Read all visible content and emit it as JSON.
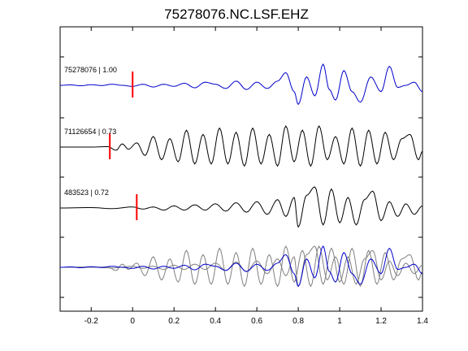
{
  "chart_data": {
    "type": "line",
    "title": "75278076.NC.LSF.EHZ",
    "xlabel": "",
    "ylabel": "",
    "xlim": [
      -0.35,
      1.4
    ],
    "x_ticks": [
      -0.2,
      0,
      0.2,
      0.4,
      0.6,
      0.8,
      1.0,
      1.2,
      1.4
    ],
    "x_tick_labels": [
      "-0.2",
      "0",
      "0.2",
      "0.4",
      "0.6",
      "0.8",
      "1",
      "1.2",
      "1.4"
    ],
    "grid": false,
    "colors": {
      "target": "#0000cc",
      "match": "#000000",
      "overlay_match": "#808080",
      "pick": "#ff0000"
    },
    "traces": [
      {
        "label": "75278076 | 1.00",
        "color": "#0000cc",
        "pick_time": 0.0,
        "points": [
          [
            -0.35,
            0.0
          ],
          [
            -0.3,
            0.02
          ],
          [
            -0.25,
            -0.02
          ],
          [
            -0.2,
            0.03
          ],
          [
            -0.15,
            -0.01
          ],
          [
            -0.1,
            0.05
          ],
          [
            -0.05,
            0.0
          ],
          [
            0.0,
            -0.05
          ],
          [
            0.05,
            0.05
          ],
          [
            0.1,
            -0.08
          ],
          [
            0.15,
            0.05
          ],
          [
            0.2,
            -0.05
          ],
          [
            0.25,
            0.1
          ],
          [
            0.3,
            -0.12
          ],
          [
            0.35,
            0.15
          ],
          [
            0.4,
            0.05
          ],
          [
            0.45,
            -0.15
          ],
          [
            0.5,
            0.2
          ],
          [
            0.55,
            -0.2
          ],
          [
            0.6,
            0.15
          ],
          [
            0.65,
            -0.15
          ],
          [
            0.7,
            0.2
          ],
          [
            0.74,
            0.6
          ],
          [
            0.78,
            -0.3
          ],
          [
            0.8,
            -0.9
          ],
          [
            0.84,
            0.4
          ],
          [
            0.88,
            -0.5
          ],
          [
            0.92,
            1.0
          ],
          [
            0.95,
            -0.2
          ],
          [
            0.98,
            -0.7
          ],
          [
            1.02,
            0.7
          ],
          [
            1.06,
            -0.3
          ],
          [
            1.1,
            -0.8
          ],
          [
            1.15,
            0.4
          ],
          [
            1.2,
            -0.3
          ],
          [
            1.24,
            0.9
          ],
          [
            1.28,
            -0.1
          ],
          [
            1.32,
            0.0
          ],
          [
            1.36,
            0.15
          ],
          [
            1.4,
            -0.3
          ]
        ]
      },
      {
        "label": "71126654 | 0.73",
        "color": "#000000",
        "pick_time": -0.11,
        "points": [
          [
            -0.35,
            0.0
          ],
          [
            -0.2,
            0.0
          ],
          [
            -0.12,
            0.02
          ],
          [
            -0.08,
            -0.15
          ],
          [
            -0.05,
            0.15
          ],
          [
            -0.02,
            -0.1
          ],
          [
            0.02,
            0.2
          ],
          [
            0.06,
            -0.4
          ],
          [
            0.1,
            0.5
          ],
          [
            0.14,
            -0.6
          ],
          [
            0.18,
            0.4
          ],
          [
            0.22,
            -0.7
          ],
          [
            0.26,
            0.8
          ],
          [
            0.3,
            -0.8
          ],
          [
            0.34,
            0.6
          ],
          [
            0.38,
            -0.8
          ],
          [
            0.42,
            0.9
          ],
          [
            0.46,
            -0.8
          ],
          [
            0.5,
            0.7
          ],
          [
            0.54,
            -0.9
          ],
          [
            0.58,
            0.9
          ],
          [
            0.62,
            -0.8
          ],
          [
            0.66,
            0.6
          ],
          [
            0.7,
            -0.9
          ],
          [
            0.74,
            1.0
          ],
          [
            0.78,
            -0.7
          ],
          [
            0.82,
            0.8
          ],
          [
            0.86,
            -0.9
          ],
          [
            0.9,
            1.0
          ],
          [
            0.94,
            -0.6
          ],
          [
            0.98,
            0.5
          ],
          [
            1.02,
            -0.8
          ],
          [
            1.06,
            0.9
          ],
          [
            1.1,
            -0.9
          ],
          [
            1.14,
            0.8
          ],
          [
            1.18,
            -0.8
          ],
          [
            1.22,
            0.7
          ],
          [
            1.26,
            -0.6
          ],
          [
            1.3,
            0.4
          ],
          [
            1.34,
            0.6
          ],
          [
            1.38,
            -0.6
          ],
          [
            1.4,
            -0.2
          ]
        ]
      },
      {
        "label": "483523 | 0.72",
        "color": "#000000",
        "pick_time": 0.02,
        "points": [
          [
            -0.35,
            0.0
          ],
          [
            -0.2,
            0.02
          ],
          [
            -0.1,
            -0.03
          ],
          [
            0.0,
            0.05
          ],
          [
            0.05,
            -0.05
          ],
          [
            0.1,
            0.05
          ],
          [
            0.15,
            -0.1
          ],
          [
            0.2,
            0.1
          ],
          [
            0.25,
            -0.1
          ],
          [
            0.3,
            0.15
          ],
          [
            0.35,
            -0.1
          ],
          [
            0.4,
            0.2
          ],
          [
            0.45,
            -0.15
          ],
          [
            0.5,
            0.25
          ],
          [
            0.55,
            -0.2
          ],
          [
            0.6,
            0.3
          ],
          [
            0.65,
            -0.3
          ],
          [
            0.7,
            0.4
          ],
          [
            0.74,
            -0.4
          ],
          [
            0.78,
            0.5
          ],
          [
            0.8,
            -0.9
          ],
          [
            0.84,
            0.6
          ],
          [
            0.88,
            1.0
          ],
          [
            0.92,
            -0.8
          ],
          [
            0.96,
            0.9
          ],
          [
            1.0,
            -0.7
          ],
          [
            1.04,
            0.5
          ],
          [
            1.08,
            -0.8
          ],
          [
            1.12,
            0.4
          ],
          [
            1.16,
            0.8
          ],
          [
            1.2,
            -0.6
          ],
          [
            1.24,
            0.3
          ],
          [
            1.28,
            -0.4
          ],
          [
            1.32,
            0.2
          ],
          [
            1.36,
            -0.3
          ],
          [
            1.4,
            0.1
          ]
        ]
      }
    ]
  }
}
